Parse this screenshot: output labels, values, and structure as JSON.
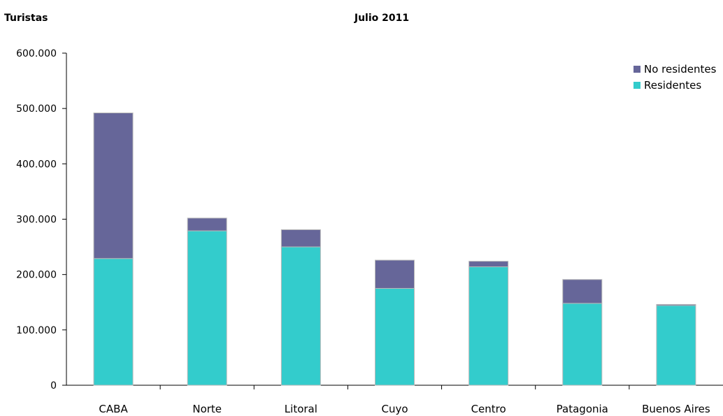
{
  "chart_data": {
    "type": "bar",
    "stacked": true,
    "title": "",
    "subtitle": "Julio 2011",
    "ylabel": "Turistas",
    "xlabel": "",
    "ylim": [
      0,
      600000
    ],
    "yticks": [
      "0",
      "100.000",
      "200.000",
      "300.000",
      "400.000",
      "500.000",
      "600.000"
    ],
    "categories": [
      "CABA",
      "Norte",
      "Litoral",
      "Cuyo",
      "Centro",
      "Patagonia",
      "Buenos Aires"
    ],
    "series": [
      {
        "name": "Residentes",
        "color": "#33cccc",
        "values": [
          229000,
          279000,
          250000,
          175000,
          214000,
          148000,
          144000
        ]
      },
      {
        "name": "No residentes",
        "color": "#666699",
        "values": [
          263000,
          23000,
          31000,
          51000,
          10000,
          43000,
          2000
        ]
      }
    ],
    "legend": {
      "position": "top-right",
      "order": [
        "No residentes",
        "Residentes"
      ]
    },
    "grid": false
  }
}
